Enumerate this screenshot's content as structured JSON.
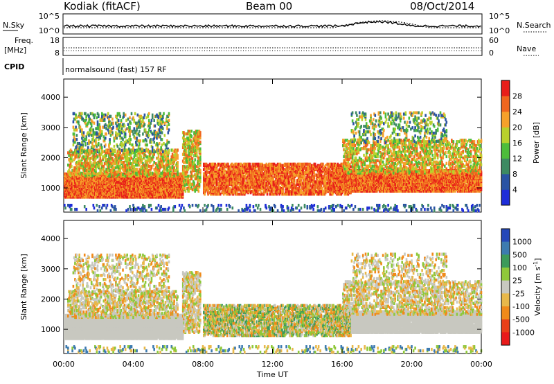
{
  "header": {
    "station": "Kodiak (fitACF)",
    "beam": "Beam 00",
    "date": "08/Oct/2014"
  },
  "panels": {
    "nsky": {
      "label": "N.Sky",
      "y_tick_top": "10^5",
      "y_tick_bottom": "10^0",
      "right_label": "N.Search",
      "right_tick_top": "10^5",
      "right_tick_bottom": "10^0"
    },
    "freq": {
      "label_line1": "Freq.",
      "label_line2": "[MHz]",
      "y_tick_top": "18",
      "y_tick_bottom": "8",
      "right_label": "Nave",
      "right_tick_top": "60",
      "right_tick_bottom": "0"
    },
    "cpid": {
      "label": "CPID",
      "text": "normalsound (fast) 157 RF"
    }
  },
  "chart_data": [
    {
      "type": "heatmap",
      "ylabel": "Slant Range [km]",
      "xlabel": "",
      "ylim": [
        200,
        4600
      ],
      "yticks": [
        1000,
        2000,
        3000,
        4000
      ],
      "x_ticks": [
        "00:00",
        "04:00",
        "08:00",
        "12:00",
        "16:00",
        "20:00",
        "00:00"
      ],
      "colorbar_label": "Power [dB]",
      "colorbar_ticks": [
        "4",
        "8",
        "12",
        "16",
        "20",
        "24",
        "28"
      ],
      "colors": [
        "#1e2dd9",
        "#2a53a3",
        "#3d8a62",
        "#4dbd3a",
        "#b8d12c",
        "#f6a12a",
        "#f0661e",
        "#e81e1a"
      ]
    },
    {
      "type": "heatmap",
      "ylabel": "Slant Range [km]",
      "xlabel": "Time UT",
      "ylim": [
        200,
        4600
      ],
      "yticks": [
        1000,
        2000,
        3000,
        4000
      ],
      "x_ticks": [
        "00:00",
        "04:00",
        "08:00",
        "12:00",
        "16:00",
        "20:00",
        "00:00"
      ],
      "colorbar_label": "Velocity [m s^-1]",
      "colorbar_ticks": [
        "1000",
        "500",
        "100",
        "25",
        "-25",
        "-100",
        "-500",
        "-1000"
      ],
      "colors": [
        "#2548b8",
        "#3d7bb0",
        "#3d9a5a",
        "#8fc83a",
        "#c8c8c0",
        "#e8b84a",
        "#f08a1a",
        "#e84018",
        "#e81a1a"
      ]
    }
  ]
}
